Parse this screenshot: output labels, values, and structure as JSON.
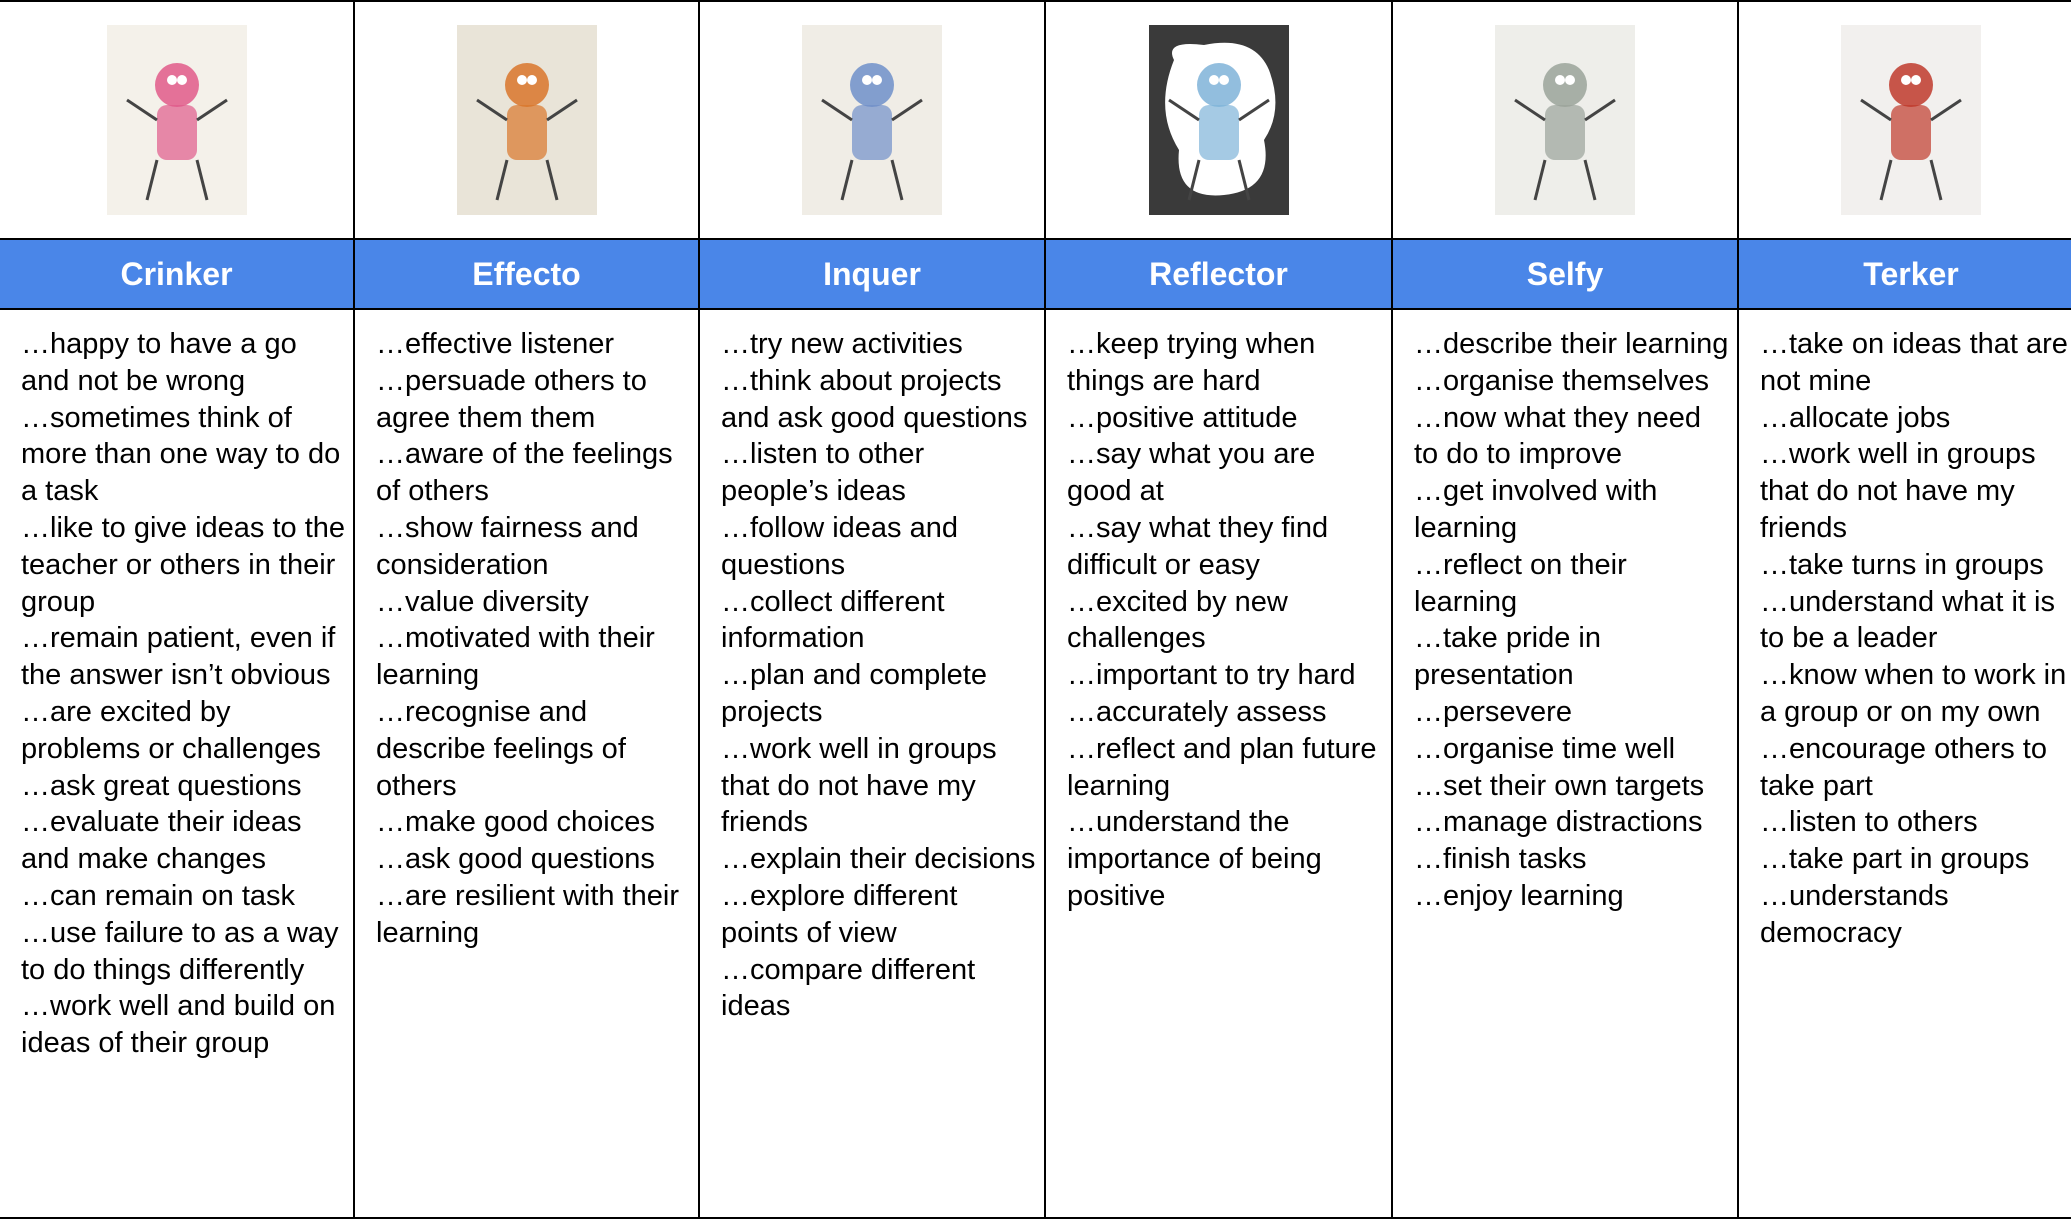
{
  "columns": [
    {
      "title": "Crinker",
      "items": [
        "…happy to have a go and not be wrong",
        "…sometimes think of more than one way to do a task",
        "…like to give ideas to the teacher or others in their group",
        "…remain patient, even if the answer isn’t obvious",
        "…are excited by problems or challenges",
        "…ask great questions",
        "…evaluate their ideas and make changes",
        "…can remain on task",
        "…use failure to as a way to do things differently",
        "…work well and build on ideas of their group"
      ]
    },
    {
      "title": "Effecto",
      "items": [
        "…effective listener",
        "…persuade others to agree them them",
        "…aware of the feelings of others",
        "…show fairness and consideration",
        "…value diversity",
        "…motivated with their learning",
        "…recognise and describe feelings of others",
        "…make good choices",
        "…ask good questions",
        "…are resilient with their learning"
      ]
    },
    {
      "title": "Inquer",
      "items": [
        "…try new activities",
        "…think about projects and ask good questions",
        "…listen to other people’s ideas",
        "…follow ideas and questions",
        "…collect different information",
        "…plan and complete projects",
        "…work well in groups that do not have my friends",
        "…explain their decisions",
        "…explore different points of view",
        "…compare different ideas"
      ]
    },
    {
      "title": "Reflector",
      "items": [
        "…keep trying when things are hard",
        "…positive attitude",
        "…say what you are good at",
        "…say what they find difficult or easy",
        "…excited by new challenges",
        "…important to try hard",
        "…accurately assess",
        "…reflect and plan future learning",
        "…understand the importance of being positive"
      ]
    },
    {
      "title": "Selfy",
      "items": [
        "…describe their learning",
        "…organise themselves",
        "…now what they need to do to improve",
        "…get involved with learning",
        "…reflect on their learning",
        "…take pride in presentation",
        "…persevere",
        "…organise time well",
        "…set their own targets",
        "…manage distractions",
        "…finish tasks",
        "…enjoy learning"
      ]
    },
    {
      "title": "Terker",
      "items": [
        "…take on ideas that are not mine",
        "…allocate jobs",
        "…work well in groups that do not have my friends",
        "…take turns in groups",
        "…understand what it is to be a leader",
        "…know when to work in a group or on my own",
        "…encourage others to take part",
        "…listen to others",
        "…take part in groups",
        "…understands democracy"
      ]
    }
  ]
}
